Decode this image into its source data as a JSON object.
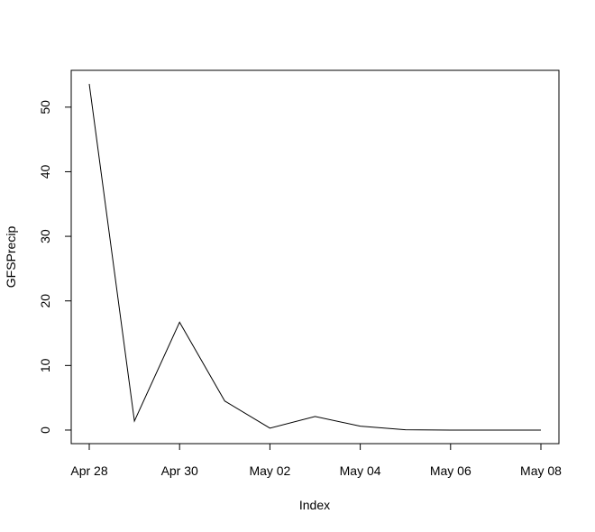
{
  "chart_data": {
    "type": "line",
    "title": "",
    "xlabel": "Index",
    "ylabel": "GFSPrecip",
    "x": [
      "Apr 28",
      "Apr 29",
      "Apr 30",
      "May 01",
      "May 02",
      "May 03",
      "May 04",
      "May 05",
      "May 06",
      "May 07",
      "May 08"
    ],
    "series": [
      {
        "values": [
          53.6,
          1.4,
          16.7,
          4.5,
          0.3,
          2.1,
          0.6,
          0.05,
          0.0,
          0.0,
          0.0
        ]
      }
    ],
    "x_ticks": [
      "Apr 28",
      "Apr 30",
      "May 02",
      "May 04",
      "May 06",
      "May 08"
    ],
    "y_ticks": [
      0,
      10,
      20,
      30,
      40,
      50
    ],
    "ylim": [
      -2.1,
      55.7
    ],
    "grid": false,
    "line_color": "#000000"
  }
}
